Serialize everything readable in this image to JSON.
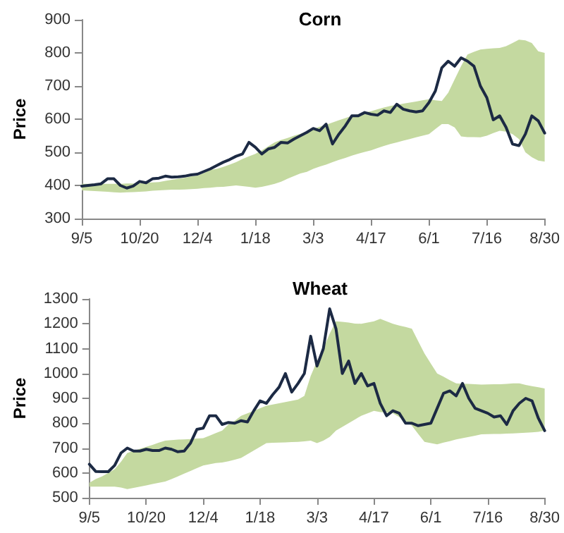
{
  "chart_data": [
    {
      "type": "line",
      "title": "Corn",
      "ylabel": "Price",
      "categories": [
        "9/5",
        null,
        null,
        null,
        null,
        null,
        null,
        null,
        null,
        "10/20",
        null,
        null,
        null,
        null,
        null,
        null,
        null,
        null,
        "12/4",
        null,
        null,
        null,
        null,
        null,
        null,
        null,
        null,
        "1/18",
        null,
        null,
        null,
        null,
        null,
        null,
        null,
        null,
        "3/3",
        null,
        null,
        null,
        null,
        null,
        null,
        null,
        null,
        "4/17",
        null,
        null,
        null,
        null,
        null,
        null,
        null,
        null,
        "6/1",
        null,
        null,
        null,
        null,
        null,
        null,
        null,
        null,
        "7/16",
        null,
        null,
        null,
        null,
        null,
        null,
        null,
        null,
        "8/30"
      ],
      "ylim": [
        300,
        900
      ],
      "yticks": [
        300,
        400,
        500,
        600,
        700,
        800,
        900
      ],
      "grid": false,
      "series": [
        {
          "color": "#1c2a44",
          "values": [
            398,
            400,
            402,
            405,
            420,
            420,
            400,
            392,
            398,
            412,
            408,
            420,
            422,
            428,
            425,
            426,
            428,
            432,
            434,
            442,
            450,
            460,
            470,
            478,
            488,
            495,
            530,
            515,
            495,
            510,
            515,
            530,
            528,
            540,
            550,
            560,
            572,
            565,
            585,
            525,
            555,
            580,
            610,
            610,
            620,
            615,
            612,
            625,
            620,
            645,
            630,
            625,
            622,
            625,
            650,
            685,
            755,
            775,
            760,
            785,
            775,
            760,
            700,
            665,
            598,
            610,
            575,
            525,
            520,
            555,
            610,
            595,
            558
          ],
          "lower": [
            385,
            384,
            383,
            382,
            381,
            379,
            378,
            379,
            380,
            381,
            382,
            384,
            385,
            386,
            387,
            387,
            388,
            389,
            390,
            392,
            393,
            395,
            396,
            398,
            400,
            398,
            396,
            393,
            396,
            400,
            405,
            411,
            420,
            428,
            436,
            441,
            450,
            457,
            463,
            470,
            477,
            483,
            490,
            496,
            501,
            506,
            513,
            519,
            525,
            530,
            535,
            540,
            545,
            550,
            555,
            570,
            585,
            585,
            575,
            548,
            546,
            546,
            545,
            550,
            558,
            565,
            562,
            555,
            540,
            500,
            485,
            475,
            472
          ],
          "upper": [
            405,
            405,
            405,
            405,
            405,
            405,
            405,
            406,
            406,
            407,
            408,
            409,
            410,
            414,
            417,
            420,
            423,
            427,
            430,
            437,
            447,
            450,
            456,
            463,
            470,
            480,
            488,
            495,
            506,
            518,
            530,
            537,
            543,
            550,
            556,
            563,
            570,
            577,
            583,
            590,
            597,
            603,
            610,
            615,
            620,
            624,
            630,
            635,
            640,
            643,
            647,
            650,
            653,
            657,
            660,
            657,
            655,
            680,
            720,
            760,
            795,
            803,
            810,
            812,
            814,
            815,
            820,
            830,
            840,
            838,
            830,
            805,
            800
          ]
        }
      ]
    },
    {
      "type": "line",
      "title": "Wheat",
      "ylabel": "Price",
      "categories": [
        "9/5",
        null,
        null,
        null,
        null,
        null,
        null,
        null,
        null,
        "10/20",
        null,
        null,
        null,
        null,
        null,
        null,
        null,
        null,
        "12/4",
        null,
        null,
        null,
        null,
        null,
        null,
        null,
        null,
        "1/18",
        null,
        null,
        null,
        null,
        null,
        null,
        null,
        null,
        "3/3",
        null,
        null,
        null,
        null,
        null,
        null,
        null,
        null,
        "4/17",
        null,
        null,
        null,
        null,
        null,
        null,
        null,
        null,
        "6/1",
        null,
        null,
        null,
        null,
        null,
        null,
        null,
        null,
        "7/16",
        null,
        null,
        null,
        null,
        null,
        null,
        null,
        null,
        "8/30"
      ],
      "ylim": [
        500,
        1300
      ],
      "yticks": [
        500,
        600,
        700,
        800,
        900,
        1000,
        1100,
        1200,
        1300
      ],
      "grid": false,
      "series": [
        {
          "color": "#1c2a44",
          "values": [
            635,
            606,
            605,
            605,
            630,
            680,
            700,
            688,
            688,
            695,
            690,
            690,
            700,
            695,
            685,
            688,
            720,
            775,
            780,
            830,
            830,
            795,
            803,
            800,
            810,
            805,
            850,
            890,
            880,
            915,
            945,
            1000,
            925,
            960,
            1000,
            1150,
            1030,
            1100,
            1260,
            1180,
            1000,
            1050,
            960,
            1000,
            950,
            960,
            880,
            830,
            850,
            840,
            800,
            800,
            790,
            795,
            800,
            860,
            920,
            930,
            910,
            960,
            900,
            860,
            850,
            840,
            825,
            830,
            795,
            850,
            880,
            900,
            890,
            820,
            770
          ],
          "lower": [
            545,
            545,
            545,
            545,
            545,
            541,
            535,
            540,
            545,
            550,
            555,
            560,
            565,
            575,
            586,
            597,
            608,
            619,
            630,
            635,
            640,
            642,
            647,
            653,
            660,
            675,
            690,
            705,
            720,
            721,
            722,
            723,
            724,
            725,
            727,
            730,
            720,
            730,
            745,
            770,
            785,
            800,
            815,
            830,
            840,
            850,
            845,
            843,
            840,
            825,
            808,
            790,
            757,
            725,
            720,
            715,
            722,
            728,
            735,
            740,
            745,
            750,
            755,
            756,
            757,
            757,
            758,
            759,
            760,
            762,
            763,
            765,
            770
          ],
          "upper": [
            560,
            575,
            586,
            600,
            615,
            645,
            680,
            689,
            697,
            705,
            713,
            722,
            730,
            732,
            734,
            735,
            736,
            738,
            740,
            750,
            760,
            770,
            795,
            810,
            830,
            840,
            850,
            860,
            870,
            875,
            880,
            885,
            890,
            895,
            910,
            990,
            1050,
            1100,
            1160,
            1210,
            1208,
            1205,
            1201,
            1200,
            1205,
            1210,
            1220,
            1210,
            1200,
            1193,
            1187,
            1180,
            1130,
            1080,
            1040,
            1000,
            987,
            973,
            960,
            959,
            958,
            957,
            955,
            956,
            957,
            957,
            958,
            960,
            960,
            954,
            949,
            945,
            940
          ]
        }
      ]
    }
  ]
}
